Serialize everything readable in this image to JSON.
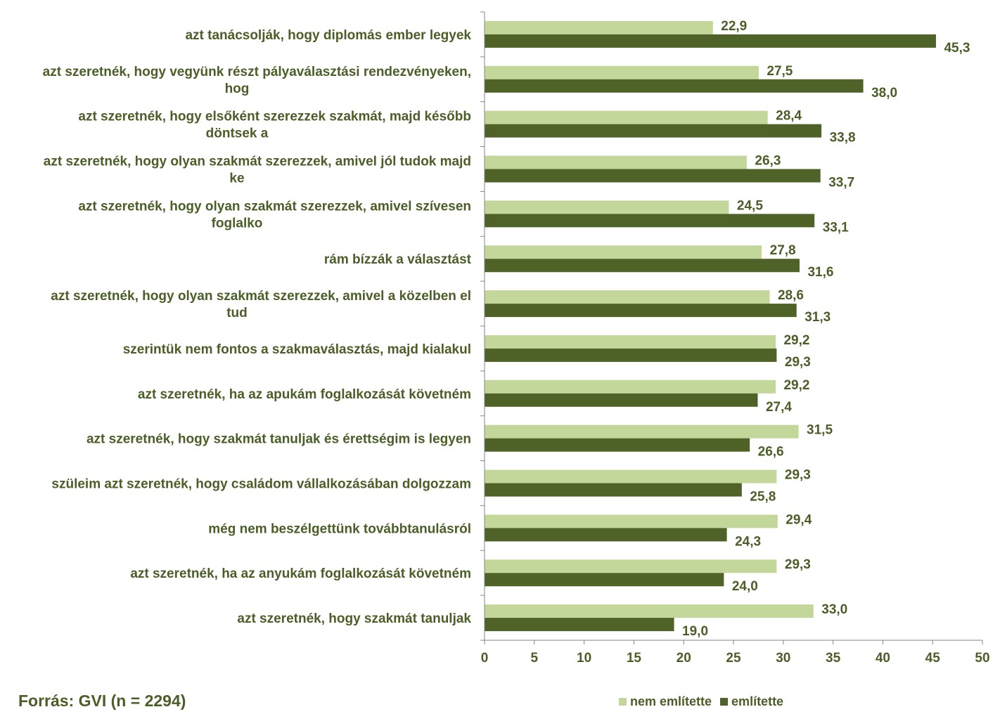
{
  "chart_data": {
    "type": "bar",
    "orientation": "horizontal",
    "categories": [
      [
        "azt tanácsolják, hogy diplomás ember legyek"
      ],
      [
        "azt szeretnék, hogy vegyünk részt pályaválasztási rendezvényeken,",
        "hog"
      ],
      [
        "azt szeretnék, hogy elsőként szerezzek szakmát, majd később",
        "döntsek a"
      ],
      [
        "azt szeretnék, hogy olyan szakmát szerezzek, amivel jól tudok majd",
        "ke"
      ],
      [
        "azt szeretnék, hogy olyan szakmát szerezzek, amivel szívesen",
        "foglalko"
      ],
      [
        "rám bízzák a választást"
      ],
      [
        "azt szeretnék, hogy olyan szakmát szerezzek, amivel a közelben el",
        "tud"
      ],
      [
        "szerintük nem fontos a szakmaválasztás, majd kialakul"
      ],
      [
        "azt szeretnék, ha az apukám foglalkozását követném"
      ],
      [
        "azt szeretnék, hogy szakmát tanuljak és érettségim is legyen"
      ],
      [
        "szüleim azt szeretnék, hogy családom vállalkozásában dolgozzam"
      ],
      [
        "még nem beszélgettünk továbbtanulásról"
      ],
      [
        "azt szeretnék, ha az anyukám foglalkozását követném"
      ],
      [
        "azt szeretnék, hogy szakmát tanuljak"
      ]
    ],
    "series": [
      {
        "name": "nem említette",
        "color": "#c4d79b",
        "values": [
          22.9,
          27.5,
          28.4,
          26.3,
          24.5,
          27.8,
          28.6,
          29.2,
          29.2,
          31.5,
          29.3,
          29.4,
          29.3,
          33.0
        ],
        "labels": [
          "22,9",
          "27,5",
          "28,4",
          "26,3",
          "24,5",
          "27,8",
          "28,6",
          "29,2",
          "29,2",
          "31,5",
          "29,3",
          "29,4",
          "29,3",
          "33,0"
        ]
      },
      {
        "name": "említette",
        "color": "#4f6228",
        "values": [
          45.3,
          38.0,
          33.8,
          33.7,
          33.1,
          31.6,
          31.3,
          29.3,
          27.4,
          26.6,
          25.8,
          24.3,
          24.0,
          19.0
        ],
        "labels": [
          "45,3",
          "38,0",
          "33,8",
          "33,7",
          "33,1",
          "31,6",
          "31,3",
          "29,3",
          "27,4",
          "26,6",
          "25,8",
          "24,3",
          "24,0",
          "19,0"
        ]
      }
    ],
    "xlim": [
      0,
      50
    ],
    "xticks": [
      0,
      5,
      10,
      15,
      20,
      25,
      30,
      35,
      40,
      45,
      50
    ],
    "grid": false,
    "legend_position": "bottom-right",
    "title": "",
    "xlabel": "",
    "ylabel": ""
  },
  "source": "Forrás: GVI (n = 2294)"
}
